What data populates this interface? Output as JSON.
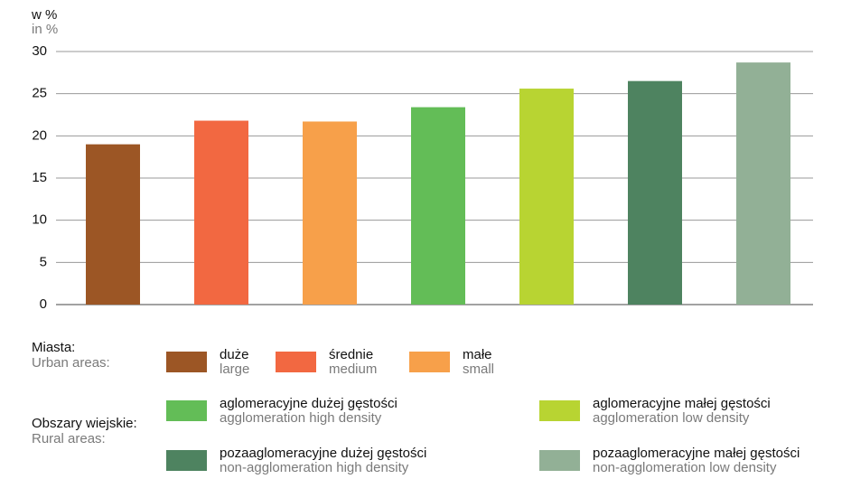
{
  "chart_data": {
    "type": "bar",
    "ylabel": "w %",
    "ylabel_en": "in %",
    "categories": [
      "duże",
      "średnie",
      "małe",
      "aglomeracyjne dużej gęstości",
      "aglomeracyjne małej gęstości",
      "pozaaglomeracyjne dużej gęstości",
      "pozaaglomeracyjne małej gęstości"
    ],
    "categories_en": [
      "large",
      "medium",
      "small",
      "agglomeration high density",
      "agglomeration low density",
      "non-agglomeration high density",
      "non-agglomeration low density"
    ],
    "values": [
      19.0,
      21.8,
      21.7,
      23.4,
      25.6,
      26.5,
      28.7
    ],
    "colors": [
      "#9c5625",
      "#f26841",
      "#f7a04a",
      "#63bd57",
      "#b8d432",
      "#4e8360",
      "#92b096"
    ],
    "legend_groups": [
      {
        "label": "Miasta:",
        "label_en": "Urban areas:"
      },
      {
        "label": "Obszary wiejskie:",
        "label_en": "Rural areas:"
      }
    ],
    "ylim": [
      0,
      30
    ],
    "yticks": [
      0,
      5,
      10,
      15,
      20,
      25,
      30
    ],
    "grid": true
  }
}
